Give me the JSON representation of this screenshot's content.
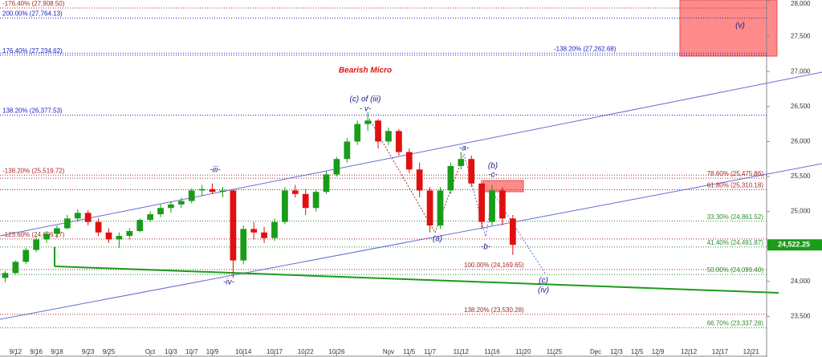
{
  "chart_data": {
    "type": "candlestick",
    "title": "Bearish Micro",
    "categories": [
      null,
      "9/12",
      null,
      "9/16",
      null,
      "9/18",
      null,
      null,
      "9/23",
      null,
      "9/25",
      null,
      null,
      null,
      "Oct",
      null,
      "10/3",
      null,
      "10/7",
      null,
      "10/9",
      null,
      null,
      "10/14",
      null,
      null,
      "10/17",
      null,
      null,
      "10/22",
      null,
      null,
      "10/26",
      null,
      null,
      null,
      null,
      "Nov",
      null,
      "11/5",
      null,
      "11/7",
      null,
      null,
      "11/12",
      null,
      null,
      "11/16",
      null,
      null,
      "11/20",
      null,
      null,
      "11/25",
      null,
      null,
      null,
      "Dec",
      null,
      "12/3",
      null,
      "12/5",
      null,
      "12/9",
      null,
      null,
      "12/12",
      null,
      null,
      "12/17",
      null,
      null,
      "12/21",
      null
    ],
    "open": [
      24050,
      24120,
      24280,
      24450,
      24600,
      24680,
      24760,
      24900,
      24980,
      24850,
      24700,
      24600,
      24650,
      24720,
      24880,
      24960,
      25050,
      25100,
      25150,
      25300,
      25320,
      25280,
      25300,
      24300,
      24750,
      24700,
      24620,
      24850,
      25300,
      25250,
      25050,
      25280,
      25530,
      25750,
      26000,
      26250,
      26300,
      26000,
      26150,
      25850,
      25600,
      25300,
      24800,
      25300,
      25650,
      25750,
      25400,
      24850,
      25300,
      24900,
      null,
      null,
      null,
      null,
      null,
      null,
      null,
      null,
      null,
      null,
      null,
      null,
      null,
      null,
      null,
      null,
      null,
      null,
      null,
      null,
      null,
      null,
      null,
      null
    ],
    "high": [
      24150,
      24300,
      24480,
      24650,
      24720,
      24800,
      24950,
      25030,
      25020,
      24900,
      24760,
      24700,
      24760,
      24900,
      25000,
      25100,
      25150,
      25200,
      25330,
      25380,
      25400,
      25350,
      25310,
      24800,
      24850,
      24780,
      24900,
      25350,
      25380,
      25320,
      25320,
      25580,
      25780,
      26050,
      26300,
      26420,
      26320,
      26200,
      26180,
      25900,
      25700,
      25350,
      25350,
      25700,
      25850,
      25800,
      25450,
      25380,
      25350,
      24950,
      null,
      null,
      null,
      null,
      null,
      null,
      null,
      null,
      null,
      null,
      null,
      null,
      null,
      null,
      null,
      null,
      null,
      null,
      null,
      null,
      null,
      null,
      null,
      null
    ],
    "low": [
      23990,
      24100,
      24250,
      24420,
      24550,
      24620,
      24740,
      24850,
      24800,
      24650,
      24550,
      24480,
      24600,
      24700,
      24850,
      24920,
      24980,
      25050,
      25120,
      25220,
      25250,
      25200,
      24050,
      24250,
      24600,
      24550,
      24580,
      24820,
      25200,
      24950,
      25000,
      25250,
      25500,
      25700,
      25950,
      26150,
      25900,
      25950,
      25800,
      25550,
      25200,
      24700,
      24750,
      25250,
      25600,
      25350,
      24750,
      24800,
      24800,
      24380,
      null,
      null,
      null,
      null,
      null,
      null,
      null,
      null,
      null,
      null,
      null,
      null,
      null,
      null,
      null,
      null,
      null,
      null,
      null,
      null,
      null,
      null,
      null,
      null
    ],
    "close": [
      24120,
      24280,
      24450,
      24600,
      24680,
      24760,
      24900,
      24980,
      24850,
      24700,
      24600,
      24650,
      24720,
      24880,
      24960,
      25050,
      25100,
      25150,
      25300,
      25320,
      25280,
      25300,
      24300,
      24750,
      24700,
      24620,
      24850,
      25300,
      25250,
      25050,
      25280,
      25530,
      25750,
      26000,
      26250,
      26300,
      26000,
      26150,
      25850,
      25600,
      25300,
      24800,
      25300,
      25650,
      25750,
      25400,
      24850,
      25300,
      24900,
      24522.25,
      null,
      null,
      null,
      null,
      null,
      null,
      null,
      null,
      null,
      null,
      null,
      null,
      null,
      null,
      null,
      null,
      null,
      null,
      null,
      null,
      null,
      null,
      null,
      null
    ],
    "up_color": "#1a9c1a",
    "down_color": "#e01010",
    "ylim": [
      23000,
      28000
    ],
    "yticks": [
      {
        "value": 28000,
        "label": "28,000"
      },
      {
        "value": 27500,
        "label": "27,500"
      },
      {
        "value": 27000,
        "label": "27,000"
      },
      {
        "value": 26500,
        "label": "26,500"
      },
      {
        "value": 26000,
        "label": "26,000"
      },
      {
        "value": 25500,
        "label": "25,500"
      },
      {
        "value": 25000,
        "label": "25,000"
      },
      {
        "value": 24500,
        "label": "24,500"
      },
      {
        "value": 24000,
        "label": "24,000"
      },
      {
        "value": 23500,
        "label": "23,500"
      }
    ],
    "last_price": {
      "value": 24522.25,
      "label": "24,522.25"
    },
    "levels": [
      {
        "label": "-176.40% (27,908.50)",
        "value": 27908.5,
        "color": "#a52a2a"
      },
      {
        "label": "200.00% (27,764.13)",
        "value": 27764.13,
        "color": "#2020c0"
      },
      {
        "label": "176.40% (27,234.62)",
        "value": 27234.62,
        "color": "#2020c0"
      },
      {
        "label": "-138.20% (27,262.68)",
        "value": 27262.68,
        "color": "#2020c0"
      },
      {
        "label": "138.20% (26,377.53)",
        "value": 26377.53,
        "color": "#2020c0"
      },
      {
        "label": "-138.20% (25,519.72)",
        "value": 25519.72,
        "color": "#a52a2a"
      },
      {
        "label": "78.60% (25,475.86)",
        "value": 25475.86,
        "color": "#a52a2a"
      },
      {
        "label": "61.80% (25,310.18)",
        "value": 25310.18,
        "color": "#a52a2a"
      },
      {
        "label": "33.30% (24,861.52)",
        "value": 24861.52,
        "color": "#2e8b2e"
      },
      {
        "label": "-123.60% (24,606.27)",
        "value": 24606.27,
        "color": "#a52a2a"
      },
      {
        "label": "41.40% (24,491.87)",
        "value": 24491.87,
        "color": "#2e8b2e"
      },
      {
        "label": "100.00% (24,169.65)",
        "value": 24169.65,
        "color": "#a52a2a"
      },
      {
        "label": "50.00% (24,099.40)",
        "value": 24099.4,
        "color": "#2e8b2e"
      },
      {
        "label": "138.20% (23,530.28)",
        "value": 23530.28,
        "color": "#a52a2a"
      },
      {
        "label": "66.70% (23,337.28)",
        "value": 23337.28,
        "color": "#2e8b2e"
      }
    ],
    "annotations": [
      "(v)",
      "(c) of (iii)",
      "- v-",
      "-iii-",
      "-iv-",
      "-a-",
      "(b)",
      "-c-",
      "(a)",
      "-b-",
      "(c)",
      "(iv)"
    ]
  }
}
